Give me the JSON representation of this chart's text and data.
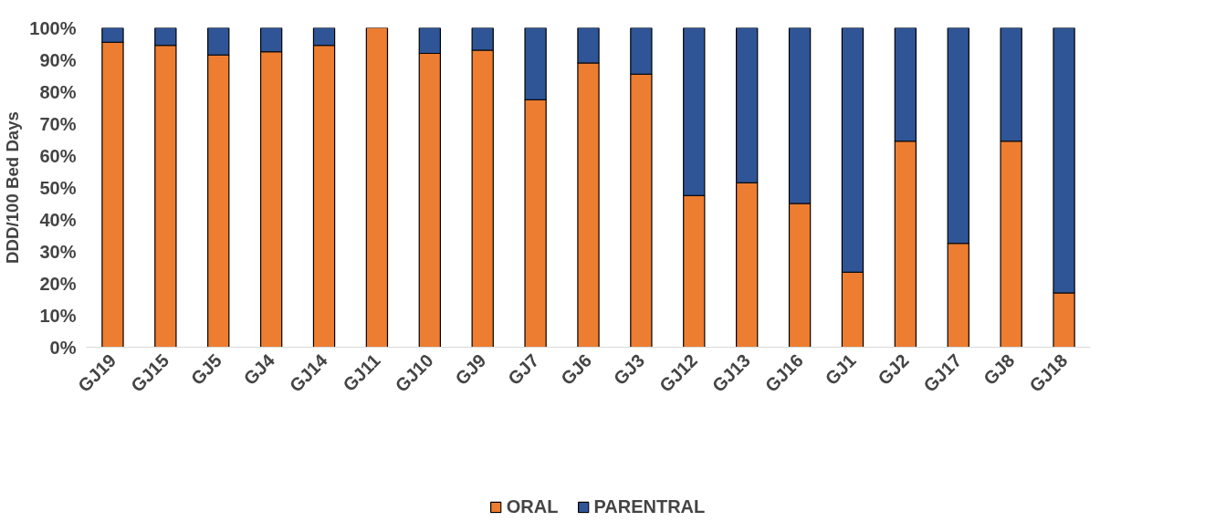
{
  "chart_data": {
    "type": "bar",
    "stacked": true,
    "ylabel": "DDD/100 Bed Days",
    "categories": [
      "GJ19",
      "GJ15",
      "GJ5",
      "GJ4",
      "GJ14",
      "GJ11",
      "GJ10",
      "GJ9",
      "GJ7",
      "GJ6",
      "GJ3",
      "GJ12",
      "GJ13",
      "GJ16",
      "GJ1",
      "GJ2",
      "GJ17",
      "GJ8",
      "GJ18"
    ],
    "series": [
      {
        "name": "ORAL",
        "color": "#ed7d31",
        "values": [
          95.5,
          94.5,
          91.5,
          92.5,
          94.5,
          100,
          92,
          93,
          77.5,
          89,
          85.5,
          47.5,
          51.5,
          45,
          23.5,
          64.5,
          32.5,
          64.5,
          17
        ]
      },
      {
        "name": "PARENTRAL",
        "color": "#2f5597",
        "values": [
          4.5,
          5.5,
          8.5,
          7.5,
          5.5,
          null,
          8,
          7,
          22.5,
          11,
          14.5,
          52.5,
          48.5,
          55,
          76.5,
          35.5,
          67.5,
          35.5,
          83
        ]
      }
    ],
    "ylim": [
      0,
      100
    ],
    "yticks": [
      {
        "value": 0,
        "label": "0%"
      },
      {
        "value": 10,
        "label": "10%"
      },
      {
        "value": 20,
        "label": "20%"
      },
      {
        "value": 30,
        "label": "30%"
      },
      {
        "value": 40,
        "label": "40%"
      },
      {
        "value": 50,
        "label": "50%"
      },
      {
        "value": 60,
        "label": "60%"
      },
      {
        "value": 70,
        "label": "70%"
      },
      {
        "value": 80,
        "label": "80%"
      },
      {
        "value": 90,
        "label": "90%"
      },
      {
        "value": 100,
        "label": "100%"
      }
    ],
    "grid": false,
    "legend": "bottom"
  }
}
